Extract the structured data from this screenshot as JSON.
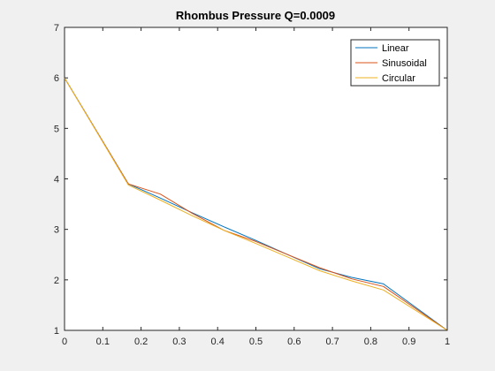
{
  "chart_data": {
    "type": "line",
    "title": "Rhombus Pressure Q=0.0009",
    "xlabel": "",
    "ylabel": "",
    "xlim": [
      0,
      1
    ],
    "ylim": [
      1,
      7
    ],
    "xticks": [
      "0",
      "0.1",
      "0.2",
      "0.3",
      "0.4",
      "0.5",
      "0.6",
      "0.7",
      "0.8",
      "0.9",
      "1"
    ],
    "yticks": [
      "1",
      "2",
      "3",
      "4",
      "5",
      "6",
      "7"
    ],
    "grid": false,
    "legend_position": "top-right",
    "series": [
      {
        "name": "Linear",
        "color": "#0072BD",
        "x": [
          0,
          0.1667,
          0.25,
          0.3333,
          0.4167,
          0.5,
          0.5833,
          0.6667,
          0.75,
          0.8333,
          1
        ],
        "y": [
          6.0,
          3.9,
          3.62,
          3.33,
          3.05,
          2.78,
          2.5,
          2.22,
          2.05,
          1.92,
          1.0
        ]
      },
      {
        "name": "Sinusoidal",
        "color": "#D95319",
        "x": [
          0,
          0.1667,
          0.25,
          0.3333,
          0.4167,
          0.5,
          0.5833,
          0.6667,
          0.75,
          0.8333,
          1
        ],
        "y": [
          6.0,
          3.9,
          3.7,
          3.32,
          2.98,
          2.76,
          2.5,
          2.24,
          2.02,
          1.87,
          1.0
        ]
      },
      {
        "name": "Circular",
        "color": "#EDB120",
        "x": [
          0,
          0.1667,
          0.25,
          0.3333,
          0.4167,
          0.5,
          0.5833,
          0.6667,
          0.75,
          0.8333,
          1
        ],
        "y": [
          6.0,
          3.88,
          3.58,
          3.27,
          2.98,
          2.72,
          2.45,
          2.18,
          1.98,
          1.8,
          1.0
        ]
      }
    ]
  }
}
